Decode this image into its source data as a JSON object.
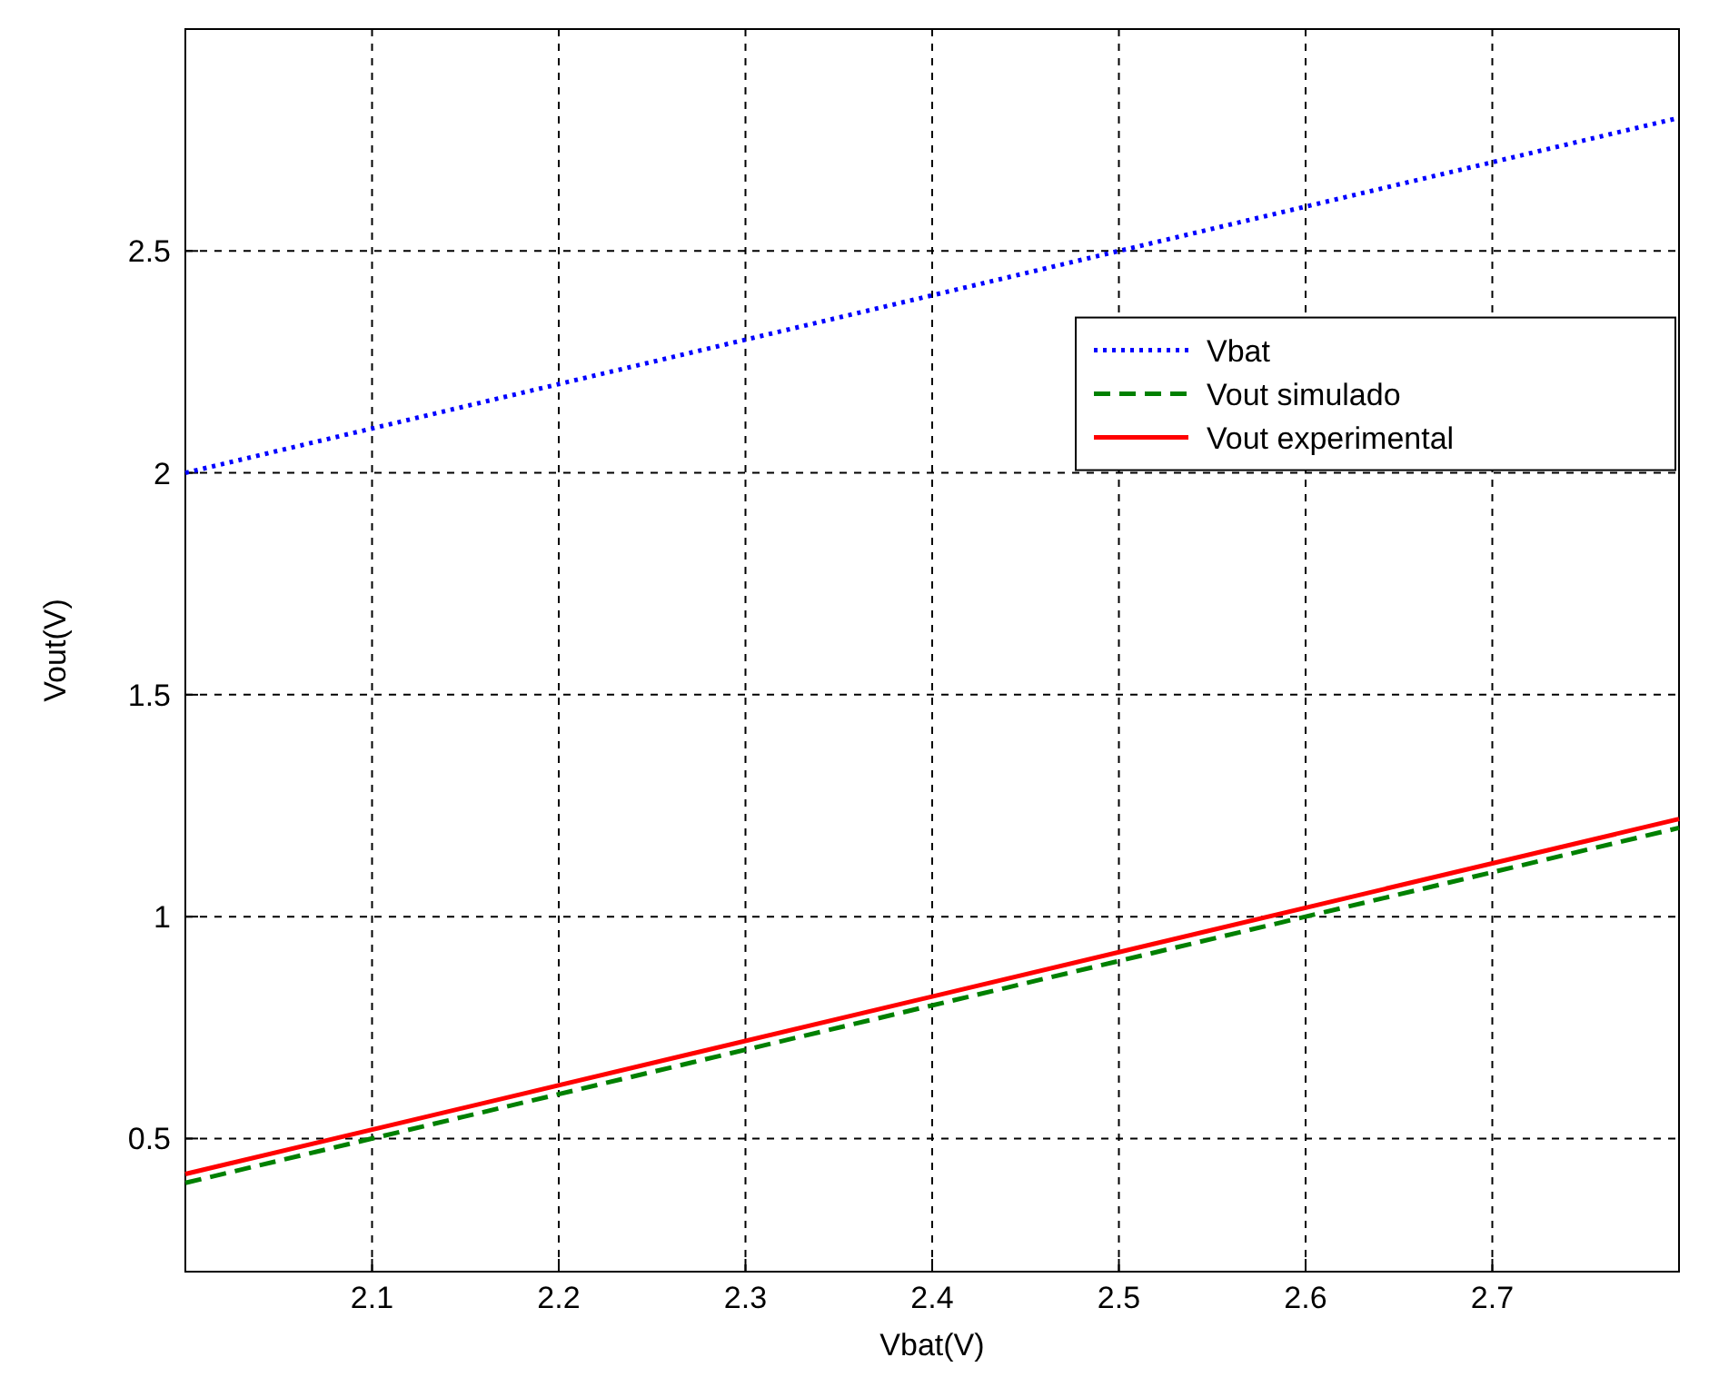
{
  "chart_data": {
    "type": "line",
    "xlabel": "Vbat(V)",
    "ylabel": "Vout(V)",
    "x": [
      2,
      2.8
    ],
    "xlim": [
      2,
      2.8
    ],
    "xticks": [
      2.1,
      2.2,
      2.3,
      2.4,
      2.5,
      2.6,
      2.7
    ],
    "ylim": [
      0.2,
      3
    ],
    "yticks": [
      0.5,
      1,
      1.5,
      2,
      2.5
    ],
    "grid": true,
    "legend": "top right",
    "series": [
      {
        "name": "Vbat",
        "color": "#0000ff",
        "line_style": "dotted",
        "values": [
          2,
          2.8
        ]
      },
      {
        "name": "Vout simulado",
        "color": "#008000",
        "line_style": "dashed",
        "values": [
          0.4,
          1.2
        ]
      },
      {
        "name": "Vout experimental",
        "color": "#ff0000",
        "line_style": "solid",
        "values": [
          0.42,
          1.22
        ]
      }
    ]
  }
}
